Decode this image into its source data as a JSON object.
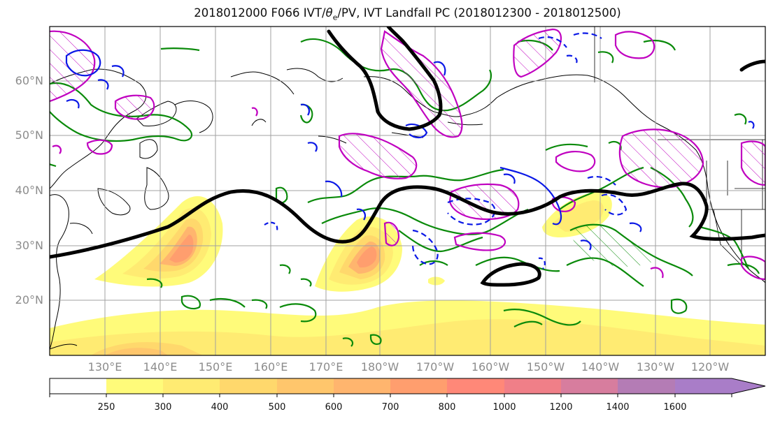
{
  "title": {
    "model_run": "2018012000 F066 IVT/",
    "theta_symbol": "θ",
    "theta_sub": "e",
    "rest": "/PV, IVT Landfall PC (2018012300 - 2018012500)"
  },
  "lat_labels": [
    "60°N",
    "50°N",
    "40°N",
    "30°N",
    "20°N"
  ],
  "lon_labels": [
    "130°E",
    "140°E",
    "150°E",
    "160°E",
    "170°E",
    "180°W",
    "170°W",
    "160°W",
    "150°W",
    "140°W",
    "130°W",
    "120°W"
  ],
  "colorbar": {
    "tick_labels": [
      "250",
      "300",
      "400",
      "500",
      "600",
      "700",
      "800",
      "1000",
      "1200",
      "1400",
      "1600"
    ],
    "colors": [
      "#ffffff",
      "#fffb7a",
      "#ffeb72",
      "#ffd86c",
      "#ffc66c",
      "#ffb56e",
      "#ff9e6e",
      "#ff8878",
      "#f07f88",
      "#d77d9e",
      "#b47cb5",
      "#a97dc8"
    ]
  },
  "line_colors": {
    "thick_contour": "#000000",
    "theta_e": "#0a8a0a",
    "pv": "#c000c0",
    "ivt_anomaly": "#0a18e6"
  }
}
